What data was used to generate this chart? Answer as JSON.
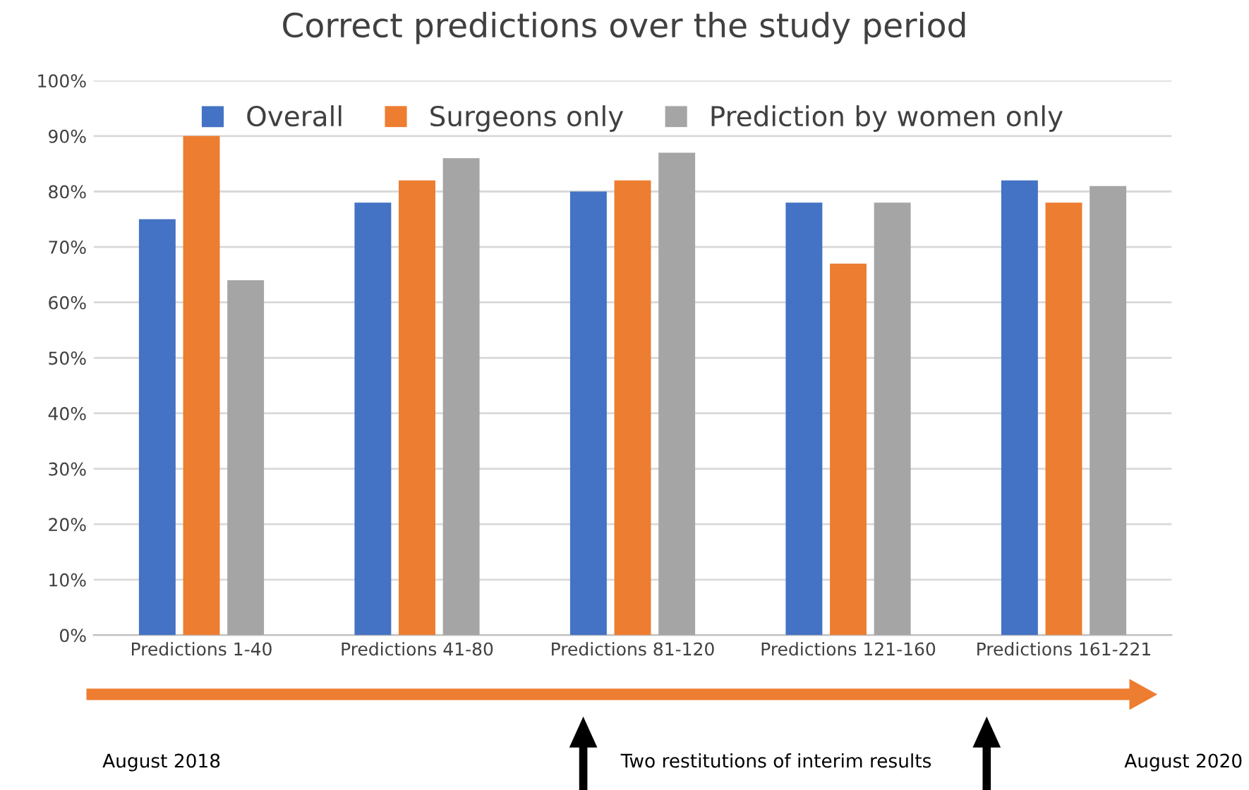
{
  "chart_data": {
    "type": "bar",
    "title": "Correct predictions over the study period",
    "categories": [
      "Predictions 1-40",
      "Predictions 41-80",
      "Predictions 81-120",
      "Predictions 121-160",
      "Predictions 161-221"
    ],
    "series": [
      {
        "name": "Overall",
        "color": "#4472c4",
        "values": [
          75,
          78,
          80,
          78,
          82
        ]
      },
      {
        "name": "Surgeons only",
        "color": "#ed7d31",
        "values": [
          90,
          82,
          82,
          67,
          78
        ]
      },
      {
        "name": "Prediction by women only",
        "color": "#a5a5a5",
        "values": [
          64,
          86,
          87,
          78,
          81
        ]
      }
    ],
    "ylim": [
      0,
      100
    ],
    "yticks": [
      {
        "value": 0,
        "label": "0%"
      },
      {
        "value": 10,
        "label": "10%"
      },
      {
        "value": 20,
        "label": "20%"
      },
      {
        "value": 30,
        "label": "30%"
      },
      {
        "value": 40,
        "label": "40%"
      },
      {
        "value": 50,
        "label": "50%"
      },
      {
        "value": 60,
        "label": "60%"
      },
      {
        "value": 70,
        "label": "70%"
      },
      {
        "value": 80,
        "label": "80%"
      },
      {
        "value": 90,
        "label": "90%"
      },
      {
        "value": 100,
        "label": "100%"
      }
    ],
    "grid": "y",
    "legend": "top",
    "annotations": [
      "August 2018",
      "Two restitutions of interim results",
      "August 2020"
    ]
  }
}
